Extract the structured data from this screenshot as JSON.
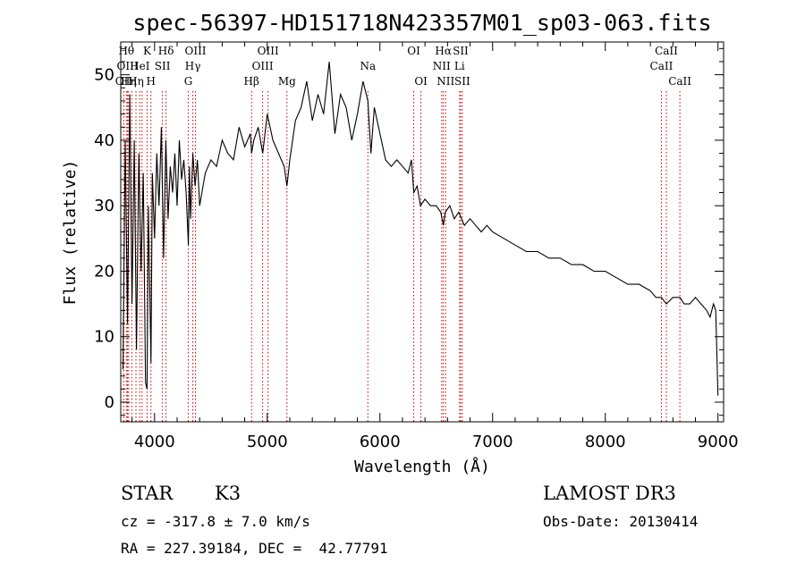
{
  "chart_data": {
    "type": "line",
    "title": "spec-56397-HD151718N423357M01_sp03-063.fits",
    "xlabel": "Wavelength (Å)",
    "ylabel": "Flux (relative)",
    "xlim": [
      3700,
      9050
    ],
    "ylim": [
      -3,
      55
    ],
    "xticks": [
      4000,
      5000,
      6000,
      7000,
      8000,
      9000
    ],
    "yticks": [
      0,
      10,
      20,
      30,
      40,
      50
    ],
    "x_minor_step": 200,
    "y_minor_step": 2,
    "series": [
      {
        "name": "spectrum",
        "x": [
          3720,
          3740,
          3760,
          3780,
          3800,
          3820,
          3840,
          3860,
          3880,
          3900,
          3920,
          3933,
          3945,
          3968,
          3980,
          4000,
          4020,
          4040,
          4060,
          4080,
          4100,
          4120,
          4140,
          4160,
          4180,
          4200,
          4220,
          4240,
          4260,
          4280,
          4300,
          4310,
          4320,
          4340,
          4360,
          4380,
          4400,
          4450,
          4500,
          4550,
          4600,
          4650,
          4700,
          4750,
          4800,
          4850,
          4861,
          4880,
          4920,
          4960,
          5000,
          5050,
          5100,
          5150,
          5175,
          5200,
          5250,
          5300,
          5350,
          5400,
          5450,
          5500,
          5550,
          5600,
          5650,
          5700,
          5750,
          5800,
          5850,
          5893,
          5920,
          5950,
          6000,
          6050,
          6100,
          6150,
          6200,
          6250,
          6280,
          6300,
          6330,
          6360,
          6400,
          6450,
          6500,
          6540,
          6563,
          6580,
          6620,
          6660,
          6700,
          6750,
          6800,
          6850,
          6900,
          6950,
          7000,
          7100,
          7200,
          7300,
          7400,
          7500,
          7600,
          7700,
          7800,
          7900,
          8000,
          8100,
          8200,
          8300,
          8400,
          8450,
          8498,
          8542,
          8600,
          8662,
          8700,
          8750,
          8800,
          8850,
          8900,
          8930,
          8960,
          8980,
          9000
        ],
        "values": [
          5,
          40,
          12,
          47,
          15,
          40,
          8,
          38,
          20,
          35,
          3,
          2,
          30,
          6,
          35,
          25,
          38,
          30,
          42,
          22,
          40,
          28,
          36,
          32,
          38,
          30,
          40,
          34,
          37,
          32,
          24,
          36,
          28,
          38,
          33,
          37,
          30,
          35,
          37,
          36,
          40,
          38,
          37,
          42,
          39,
          41,
          38,
          40,
          42,
          38,
          44,
          40,
          38,
          36,
          33,
          37,
          43,
          45,
          49,
          43,
          47,
          44,
          52,
          41,
          47,
          45,
          40,
          44,
          49,
          46,
          38,
          45,
          41,
          37,
          36,
          37,
          36,
          35,
          37,
          32,
          33,
          30,
          31,
          30,
          30,
          29,
          27,
          29,
          30,
          28,
          29,
          27,
          28,
          27,
          26,
          27,
          26,
          25,
          24,
          23,
          23,
          22,
          22,
          21,
          21,
          20,
          20,
          19,
          18,
          18,
          17,
          16,
          16,
          15,
          16,
          16,
          15,
          15,
          16,
          15,
          14,
          13,
          15,
          14,
          1
        ]
      }
    ],
    "line_marks": [
      {
        "x": 3727,
        "label": "OII",
        "row": 2
      },
      {
        "x": 3750,
        "label": "Hθ",
        "row": 0
      },
      {
        "x": 3760,
        "label": "OIII",
        "row": 1
      },
      {
        "x": 3770,
        "label": "Hη",
        "row": 2
      },
      {
        "x": 3798,
        "label": "",
        "row": 0
      },
      {
        "x": 3835,
        "label": "Hη",
        "row": 2
      },
      {
        "x": 3869,
        "label": "HeI",
        "row": 1
      },
      {
        "x": 3889,
        "label": "",
        "row": 0
      },
      {
        "x": 3934,
        "label": "K",
        "row": 0
      },
      {
        "x": 3968,
        "label": "H",
        "row": 2
      },
      {
        "x": 4070,
        "label": "SII",
        "row": 1
      },
      {
        "x": 4102,
        "label": "Hδ",
        "row": 0
      },
      {
        "x": 4300,
        "label": "G",
        "row": 2
      },
      {
        "x": 4340,
        "label": "Hγ",
        "row": 1
      },
      {
        "x": 4363,
        "label": "OIII",
        "row": 0
      },
      {
        "x": 4861,
        "label": "Hβ",
        "row": 2
      },
      {
        "x": 4959,
        "label": "OIII",
        "row": 1
      },
      {
        "x": 5007,
        "label": "OIII",
        "row": 0
      },
      {
        "x": 5175,
        "label": "Mg",
        "row": 2
      },
      {
        "x": 5893,
        "label": "Na",
        "row": 1
      },
      {
        "x": 6300,
        "label": "OI",
        "row": 0
      },
      {
        "x": 6364,
        "label": "OI",
        "row": 2
      },
      {
        "x": 6548,
        "label": "NII",
        "row": 1
      },
      {
        "x": 6563,
        "label": "Hα",
        "row": 0
      },
      {
        "x": 6583,
        "label": "NII",
        "row": 2
      },
      {
        "x": 6707,
        "label": "Li",
        "row": 1
      },
      {
        "x": 6716,
        "label": "SII",
        "row": 0
      },
      {
        "x": 6731,
        "label": "SII",
        "row": 2
      },
      {
        "x": 8498,
        "label": "CaII",
        "row": 1
      },
      {
        "x": 8542,
        "label": "CaII",
        "row": 0
      },
      {
        "x": 8662,
        "label": "CaII",
        "row": 2
      }
    ],
    "colors": {
      "line": "#000000",
      "marker": "#cc0000"
    }
  },
  "info": {
    "class_label": "STAR",
    "subclass": "K3",
    "survey": "LAMOST DR3",
    "redshift_text": "cz = -317.8 ± 7.0 km/s",
    "obs_date": "Obs-Date: 20130414",
    "coords": "RA = 227.39184, DEC =  42.77791"
  }
}
